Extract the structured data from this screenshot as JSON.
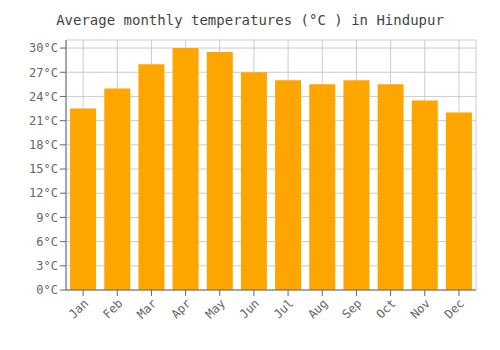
{
  "chart_data": {
    "type": "bar",
    "title": "Average monthly temperatures (°C ) in Hindupur",
    "categories": [
      "Jan",
      "Feb",
      "Mar",
      "Apr",
      "May",
      "Jun",
      "Jul",
      "Aug",
      "Sep",
      "Oct",
      "Nov",
      "Dec"
    ],
    "values": [
      22.5,
      25.0,
      28.0,
      30.0,
      29.5,
      27.0,
      26.0,
      25.5,
      26.0,
      25.5,
      23.5,
      22.0
    ],
    "color": "#FFA500",
    "ylim": [
      0,
      31
    ],
    "yticks": [
      {
        "value": 0,
        "label": "0°C"
      },
      {
        "value": 3,
        "label": "3°C"
      },
      {
        "value": 6,
        "label": "6°C"
      },
      {
        "value": 9,
        "label": "9°C"
      },
      {
        "value": 12,
        "label": "12°C"
      },
      {
        "value": 15,
        "label": "15°C"
      },
      {
        "value": 18,
        "label": "18°C"
      },
      {
        "value": 21,
        "label": "21°C"
      },
      {
        "value": 24,
        "label": "24°C"
      },
      {
        "value": 27,
        "label": "27°C"
      },
      {
        "value": 30,
        "label": "30°C"
      }
    ],
    "grid": true
  }
}
